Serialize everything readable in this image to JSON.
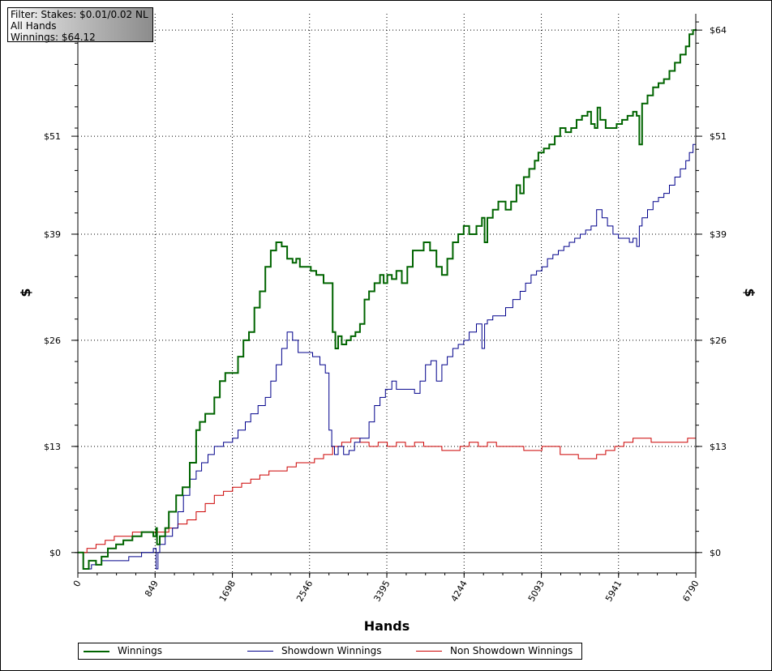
{
  "filter": {
    "line1": "Filter: Stakes: $0.01/0.02 NL",
    "line2": "All Hands",
    "line3": "Winnings: $64.12"
  },
  "chart_data": {
    "type": "line",
    "xlabel": "Hands",
    "ylabel": "$",
    "xlim": [
      0,
      6790
    ],
    "ylim": [
      -2.5,
      66
    ],
    "x_ticks": [
      0,
      849,
      1698,
      2546,
      3395,
      4244,
      5093,
      5941,
      6790
    ],
    "x_tick_labels": [
      "0",
      "849",
      "1698",
      "2546",
      "3395",
      "4244",
      "5093",
      "5941",
      "6790"
    ],
    "y_ticks": [
      0,
      13,
      26,
      39,
      51,
      64
    ],
    "y_tick_labels": [
      "$0",
      "$13",
      "$26",
      "$39",
      "$51",
      "$64"
    ],
    "grid": true,
    "legend_position": "bottom",
    "series": [
      {
        "name": "Winnings",
        "color": "#006400",
        "x": [
          0,
          60,
          120,
          200,
          260,
          330,
          420,
          500,
          600,
          700,
          760,
          830,
          860,
          870,
          900,
          960,
          1000,
          1080,
          1150,
          1230,
          1300,
          1340,
          1400,
          1500,
          1560,
          1620,
          1700,
          1760,
          1820,
          1880,
          1940,
          2000,
          2060,
          2120,
          2180,
          2240,
          2300,
          2360,
          2400,
          2440,
          2500,
          2560,
          2620,
          2700,
          2760,
          2800,
          2830,
          2860,
          2900,
          2950,
          3000,
          3050,
          3100,
          3150,
          3200,
          3260,
          3320,
          3360,
          3400,
          3450,
          3500,
          3560,
          3620,
          3680,
          3740,
          3800,
          3870,
          3940,
          4000,
          4060,
          4120,
          4180,
          4240,
          4300,
          4380,
          4440,
          4470,
          4500,
          4560,
          4620,
          4700,
          4760,
          4820,
          4860,
          4900,
          4960,
          5020,
          5060,
          5120,
          5180,
          5240,
          5300,
          5360,
          5420,
          5480,
          5540,
          5600,
          5640,
          5680,
          5710,
          5740,
          5800,
          5860,
          5920,
          5980,
          6040,
          6100,
          6140,
          6170,
          6200,
          6260,
          6320,
          6380,
          6440,
          6500,
          6560,
          6620,
          6680,
          6720,
          6760,
          6790
        ],
        "y": [
          0,
          -2,
          -1,
          -1.5,
          -0.5,
          0.5,
          1,
          1.5,
          2,
          2.5,
          2.5,
          2,
          3,
          1,
          2,
          3,
          5,
          7,
          8,
          11,
          15,
          16,
          17,
          19,
          21,
          22,
          22,
          24,
          26,
          27,
          30,
          32,
          35,
          37,
          38,
          37.5,
          36,
          35.5,
          36,
          35,
          35,
          34.5,
          34,
          33,
          33,
          27,
          25,
          26.5,
          25.5,
          26,
          26.5,
          27,
          28,
          31,
          32,
          33,
          34,
          33,
          34,
          33.5,
          34.5,
          33,
          35,
          37,
          37,
          38,
          37,
          35,
          34,
          36,
          38,
          39,
          40,
          39,
          40,
          41,
          38,
          41,
          42,
          43,
          42,
          43,
          45,
          44,
          46,
          47,
          48,
          49,
          49.5,
          50,
          51,
          52,
          51.5,
          52,
          53,
          53.5,
          54,
          52.5,
          52,
          54.5,
          53,
          52,
          52,
          52.5,
          53,
          53.5,
          54,
          53.5,
          50,
          55,
          56,
          57,
          57.5,
          58,
          59,
          60,
          61,
          62,
          63.5,
          64,
          64.12
        ]
      },
      {
        "name": "Showdown Winnings",
        "color": "#00008b",
        "x": [
          0,
          60,
          150,
          260,
          400,
          560,
          700,
          830,
          860,
          880,
          900,
          960,
          1040,
          1100,
          1160,
          1230,
          1300,
          1360,
          1430,
          1500,
          1600,
          1700,
          1760,
          1840,
          1900,
          1980,
          2060,
          2120,
          2180,
          2240,
          2300,
          2360,
          2420,
          2500,
          2580,
          2660,
          2720,
          2760,
          2790,
          2820,
          2860,
          2920,
          2980,
          3040,
          3100,
          3150,
          3200,
          3260,
          3320,
          3380,
          3450,
          3500,
          3560,
          3620,
          3700,
          3760,
          3820,
          3880,
          3940,
          4000,
          4060,
          4120,
          4180,
          4240,
          4300,
          4380,
          4440,
          4470,
          4500,
          4560,
          4620,
          4700,
          4780,
          4860,
          4920,
          4980,
          5040,
          5100,
          5160,
          5220,
          5280,
          5340,
          5400,
          5460,
          5520,
          5580,
          5640,
          5700,
          5760,
          5820,
          5880,
          5940,
          6000,
          6060,
          6100,
          6140,
          6170,
          6200,
          6260,
          6320,
          6380,
          6440,
          6500,
          6560,
          6620,
          6680,
          6720,
          6760,
          6790
        ],
        "y": [
          0,
          -2,
          -1.5,
          -1,
          -1,
          -0.5,
          0,
          0.5,
          -2,
          0,
          1,
          2,
          3,
          5,
          7,
          9,
          10,
          11,
          12,
          13,
          13.5,
          14,
          15,
          16,
          17,
          18,
          19,
          21,
          23,
          25,
          27,
          26,
          24.5,
          24.5,
          24,
          23,
          22,
          15,
          13,
          12,
          13,
          12,
          12.5,
          13.5,
          14,
          14,
          16,
          18,
          19,
          20,
          21,
          20,
          20,
          20,
          19.5,
          21,
          23,
          23.5,
          21,
          23,
          24,
          25,
          25.5,
          26,
          27,
          28,
          25,
          28,
          28.5,
          29,
          29,
          30,
          31,
          32,
          33,
          34,
          34.5,
          35,
          36,
          36.5,
          37,
          37.5,
          38,
          38.5,
          39,
          39.5,
          40,
          42,
          41,
          40,
          39,
          38.5,
          38.5,
          38,
          38.5,
          37.5,
          40,
          41,
          42,
          43,
          43.5,
          44,
          45,
          46,
          47,
          48,
          49,
          50,
          51
        ]
      },
      {
        "name": "Non Showdown Winnings",
        "color": "#cc0000",
        "x": [
          0,
          100,
          200,
          300,
          400,
          500,
          600,
          700,
          800,
          900,
          1000,
          1100,
          1200,
          1300,
          1400,
          1500,
          1600,
          1700,
          1800,
          1900,
          2000,
          2100,
          2200,
          2300,
          2400,
          2500,
          2600,
          2700,
          2800,
          2900,
          3000,
          3100,
          3200,
          3300,
          3400,
          3500,
          3600,
          3700,
          3800,
          3900,
          4000,
          4100,
          4200,
          4300,
          4400,
          4500,
          4600,
          4700,
          4800,
          4900,
          5000,
          5100,
          5200,
          5300,
          5400,
          5500,
          5600,
          5700,
          5800,
          5900,
          6000,
          6100,
          6200,
          6300,
          6400,
          6500,
          6600,
          6700,
          6790
        ],
        "y": [
          0,
          0.5,
          1,
          1.5,
          2,
          2,
          2.5,
          2.5,
          2.5,
          2.5,
          3,
          3.5,
          4,
          5,
          6,
          7,
          7.5,
          8,
          8.5,
          9,
          9.5,
          10,
          10,
          10.5,
          11,
          11,
          11.5,
          12,
          13,
          13.5,
          14,
          13.5,
          13,
          13.5,
          13,
          13.5,
          13,
          13.5,
          13,
          13,
          12.5,
          12.5,
          13,
          13.5,
          13,
          13.5,
          13,
          13,
          13,
          12.5,
          12.5,
          13,
          13,
          12,
          12,
          11.5,
          11.5,
          12,
          12.5,
          13,
          13.5,
          14,
          14,
          13.5,
          13.5,
          13.5,
          13.5,
          14,
          13.5
        ]
      }
    ]
  }
}
